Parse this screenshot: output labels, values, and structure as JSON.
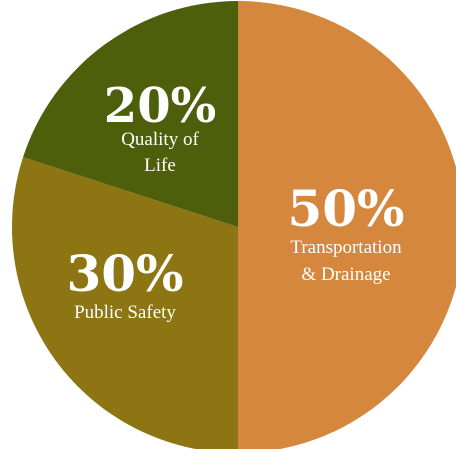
{
  "chart_data": {
    "type": "pie",
    "slices": [
      {
        "value": 50,
        "percent_label": "50%",
        "label_lines": [
          "Transportation",
          "& Drainage"
        ],
        "color": "#d4873d"
      },
      {
        "value": 30,
        "percent_label": "30%",
        "label_lines": [
          "Public Safety"
        ],
        "color": "#8c7512"
      },
      {
        "value": 20,
        "percent_label": "20%",
        "label_lines": [
          "Quality of",
          "Life"
        ],
        "color": "#4d5f0b"
      }
    ]
  }
}
